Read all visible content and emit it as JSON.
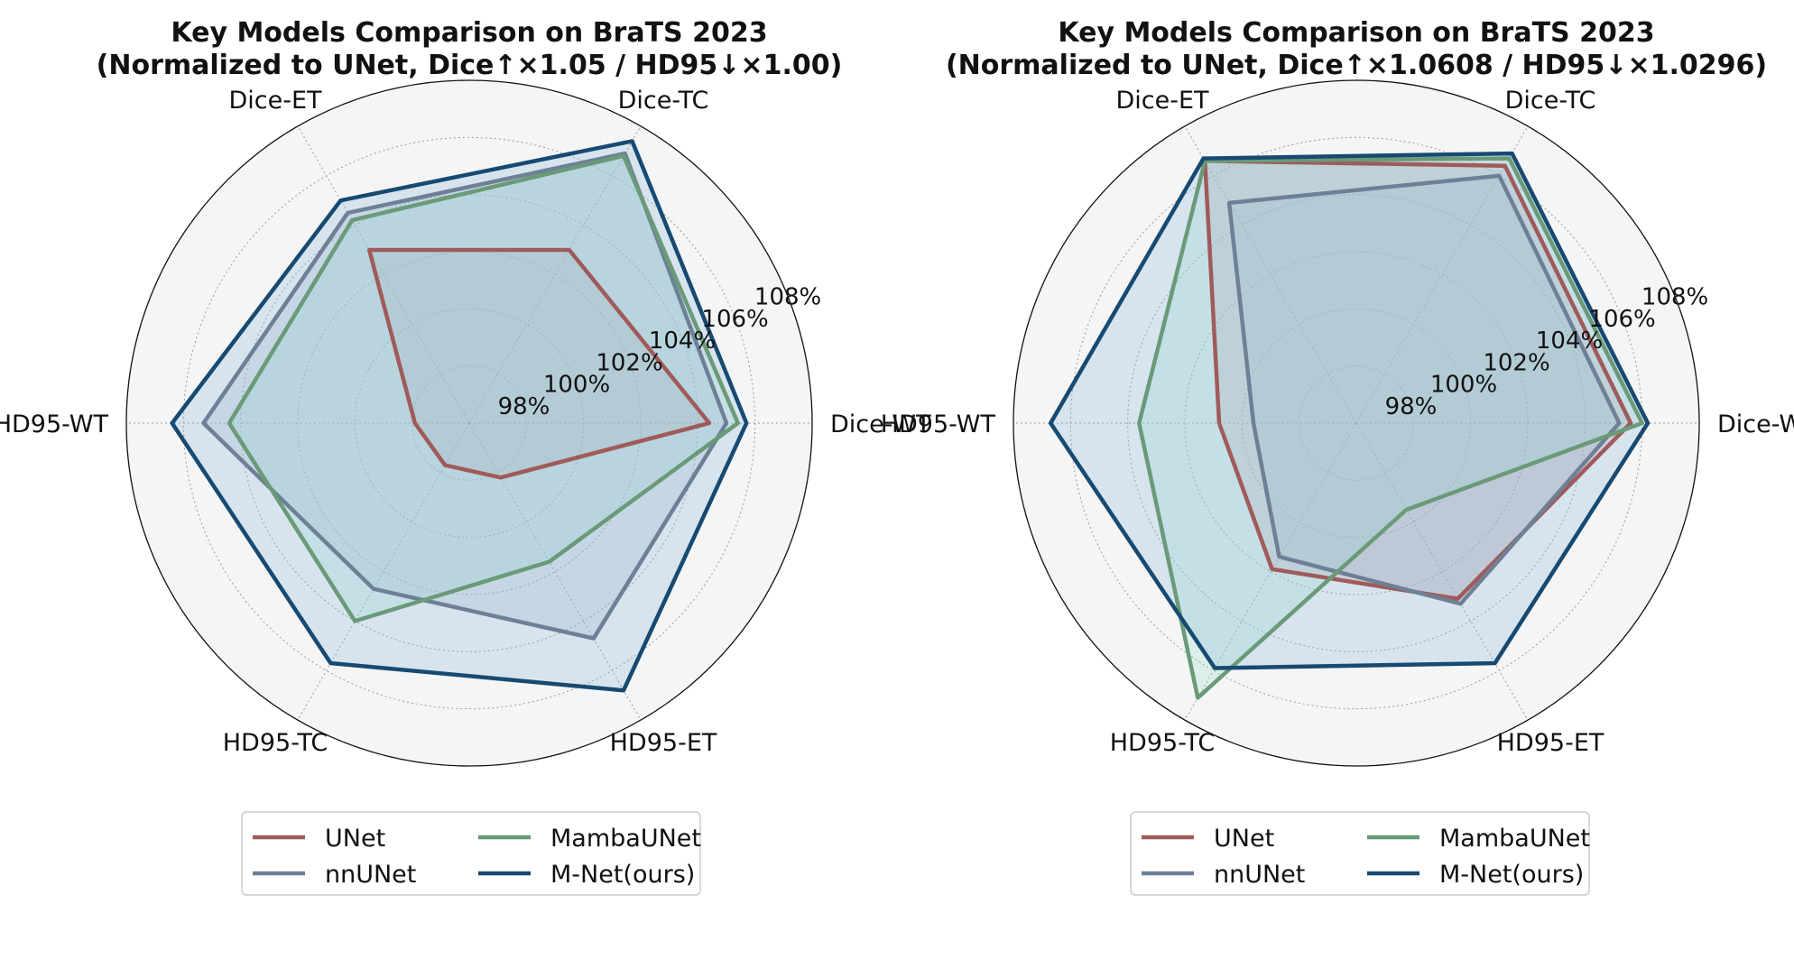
{
  "chart_data": [
    {
      "type": "radar",
      "title_lines": [
        "Key Models Comparison on BraTS 2023",
        "(Normalized to UNet, Dice↑×1.05 / HD95↓×1.00)"
      ],
      "axes": [
        "Dice-WT",
        "Dice-TC",
        "Dice-ET",
        "HD95-WT",
        "HD95-TC",
        "HD95-ET"
      ],
      "r_ticks": [
        "98%",
        "100%",
        "102%",
        "104%",
        "106%",
        "108%"
      ],
      "r_range": [
        96,
        108
      ],
      "grid": true,
      "legend_position": "bottom-center",
      "series": [
        {
          "name": "UNet",
          "color": "#a05a5a",
          "fill": "#c79a9a",
          "values": [
            104.4,
            103.0,
            103.0,
            97.9,
            97.7,
            98.2
          ]
        },
        {
          "name": "nnUNet",
          "color": "#6e8096",
          "fill": "#9fb0c4",
          "values": [
            105.0,
            106.9,
            104.5,
            105.3,
            102.7,
            104.7
          ]
        },
        {
          "name": "MambaUNet",
          "color": "#6a9a78",
          "fill": "#9fe0cf",
          "values": [
            105.4,
            106.8,
            104.2,
            104.4,
            104.0,
            101.6
          ]
        },
        {
          "name": "M-Net(ours)",
          "color": "#174a72",
          "fill": "#8ab6dc",
          "values": [
            105.7,
            107.4,
            105.0,
            106.4,
            105.7,
            106.8
          ]
        }
      ]
    },
    {
      "type": "radar",
      "title_lines": [
        "Key Models Comparison on BraTS 2023",
        "(Normalized to UNet, Dice↑×1.0608 / HD95↓×1.0296)"
      ],
      "axes": [
        "Dice-WT",
        "Dice-TC",
        "Dice-ET",
        "HD95-WT",
        "HD95-TC",
        "HD95-ET"
      ],
      "r_ticks": [
        "98%",
        "100%",
        "102%",
        "104%",
        "106%",
        "108%"
      ],
      "r_range": [
        96,
        108
      ],
      "grid": true,
      "legend_position": "bottom-center",
      "series": [
        {
          "name": "UNet",
          "color": "#a05a5a",
          "fill": "#c79a9a",
          "values": [
            105.6,
            106.4,
            106.6,
            100.8,
            101.9,
            103.1
          ]
        },
        {
          "name": "nnUNet",
          "color": "#6e8096",
          "fill": "#9fb0c4",
          "values": [
            105.2,
            106.0,
            104.9,
            99.6,
            101.4,
            103.3
          ]
        },
        {
          "name": "MambaUNet",
          "color": "#6a9a78",
          "fill": "#9fe0cf",
          "values": [
            106.0,
            106.7,
            106.6,
            103.6,
            107.1,
            99.5
          ]
        },
        {
          "name": "M-Net(ours)",
          "color": "#174a72",
          "fill": "#8ab6dc",
          "values": [
            106.2,
            106.9,
            106.7,
            106.7,
            105.9,
            105.7
          ]
        }
      ]
    }
  ]
}
